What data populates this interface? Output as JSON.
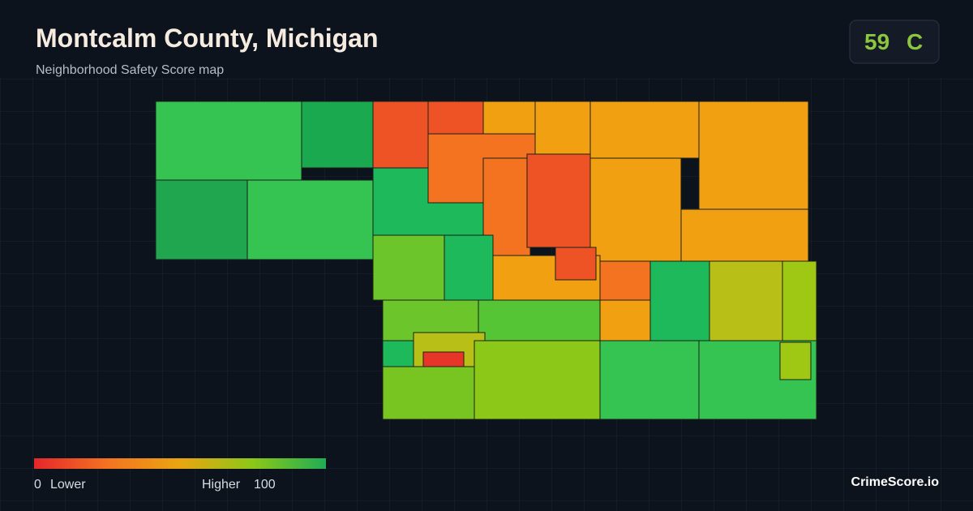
{
  "header": {
    "title": "Montcalm County, Michigan",
    "subtitle": "Neighborhood Safety Score map"
  },
  "badge": {
    "score": "59",
    "grade": "C"
  },
  "legend": {
    "min": "0",
    "min_label": "Lower",
    "max_label": "Higher",
    "max": "100"
  },
  "footer": {
    "brand": "CrimeScore.io"
  }
}
